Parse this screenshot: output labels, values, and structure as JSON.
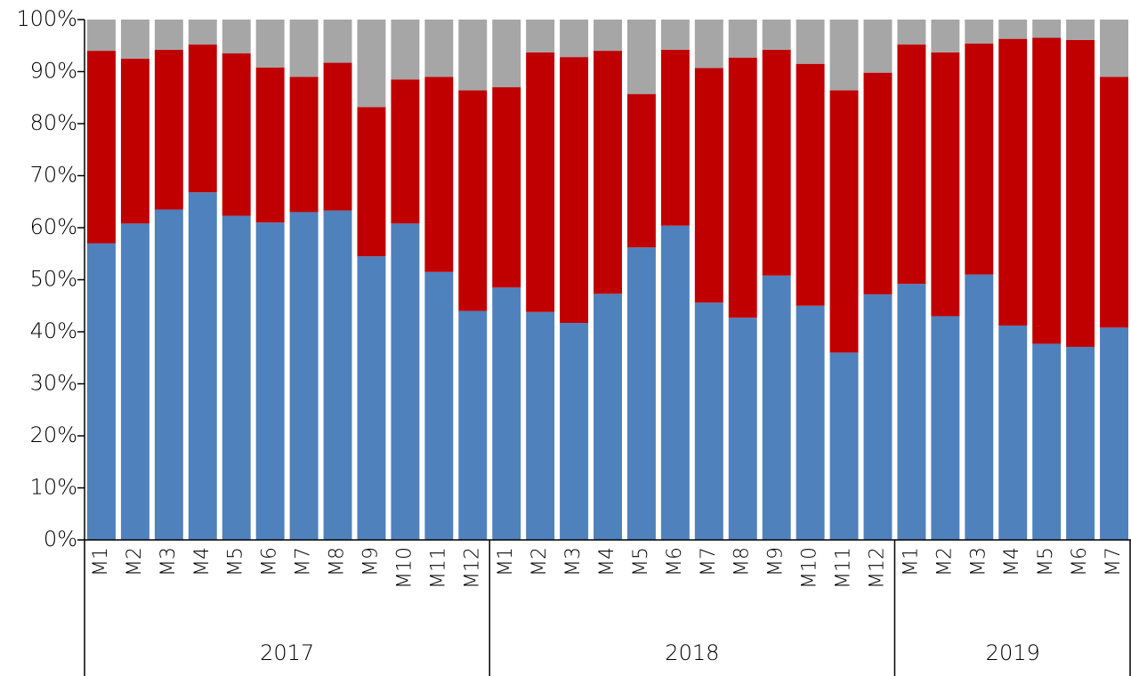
{
  "chart_data": {
    "type": "stacked_bar",
    "groups": [
      {
        "label": "2017",
        "categories": [
          "M1",
          "M2",
          "M3",
          "M4",
          "M5",
          "M6",
          "M7",
          "M8",
          "M9",
          "M10",
          "M11",
          "M12"
        ]
      },
      {
        "label": "2018",
        "categories": [
          "M1",
          "M2",
          "M3",
          "M4",
          "M5",
          "M6",
          "M7",
          "M8",
          "M9",
          "M10",
          "M11",
          "M12"
        ]
      },
      {
        "label": "2019",
        "categories": [
          "M1",
          "M2",
          "M3",
          "M4",
          "M5",
          "M6",
          "M7"
        ]
      }
    ],
    "series": [
      {
        "color": "#4f81bd",
        "values": [
          57,
          60.8,
          63.5,
          66.8,
          62.3,
          61,
          63,
          63.3,
          54.5,
          60.8,
          51.5,
          44,
          48.5,
          43.8,
          41.7,
          47.3,
          56.2,
          60.4,
          45.6,
          42.7,
          50.8,
          45,
          36,
          47.2,
          49.2,
          43,
          51,
          41.2,
          37.7,
          37.1,
          40.8
        ]
      },
      {
        "color": "#c00000",
        "values": [
          37,
          31.7,
          30.7,
          28.4,
          31.2,
          29.8,
          26,
          28.4,
          28.7,
          27.7,
          37.5,
          42.4,
          38.5,
          49.9,
          51.1,
          46.7,
          29.5,
          33.8,
          45.1,
          50,
          43.4,
          46.5,
          50.4,
          42.6,
          46,
          50.7,
          44.4,
          55.1,
          58.8,
          59,
          48.2
        ]
      },
      {
        "color": "#a6a6a6",
        "values": [
          6,
          7.5,
          5.8,
          4.8,
          6.5,
          9.2,
          11,
          8.3,
          16.8,
          11.5,
          11,
          13.6,
          13,
          6.3,
          7.2,
          6,
          14.3,
          5.8,
          9.3,
          7.3,
          5.8,
          8.5,
          13.6,
          10.2,
          4.8,
          6.3,
          4.6,
          3.7,
          3.5,
          3.9,
          11
        ]
      }
    ],
    "ylim": [
      0,
      100
    ],
    "yticks": [
      {
        "value": 0,
        "label": "0%"
      },
      {
        "value": 10,
        "label": "10%"
      },
      {
        "value": 20,
        "label": "20%"
      },
      {
        "value": 30,
        "label": "30%"
      },
      {
        "value": 40,
        "label": "40%"
      },
      {
        "value": 50,
        "label": "50%"
      },
      {
        "value": 60,
        "label": "60%"
      },
      {
        "value": 70,
        "label": "70%"
      },
      {
        "value": 80,
        "label": "80%"
      },
      {
        "value": 90,
        "label": "90%"
      },
      {
        "value": 100,
        "label": "100%"
      }
    ]
  }
}
